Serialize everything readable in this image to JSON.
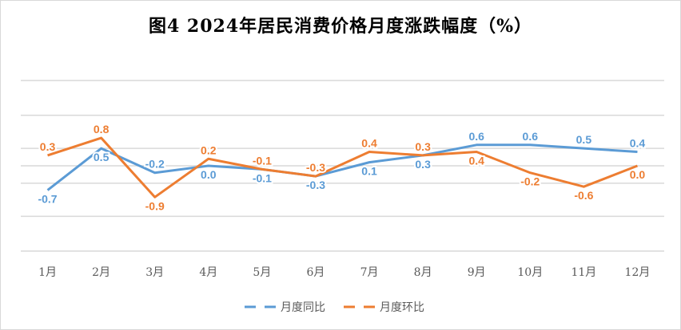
{
  "chart_data": {
    "type": "line",
    "title": "图4  2024年居民消费价格月度涨跌幅度（%）",
    "categories": [
      "1月",
      "2月",
      "3月",
      "4月",
      "5月",
      "6月",
      "7月",
      "8月",
      "9月",
      "10月",
      "11月",
      "12月"
    ],
    "series": [
      {
        "name": "月度同比",
        "color": "#5b9bd5",
        "dashed": true,
        "values": [
          -0.7,
          0.5,
          -0.2,
          0.0,
          -0.1,
          -0.3,
          0.1,
          0.3,
          0.6,
          0.6,
          0.5,
          0.4
        ],
        "labels": [
          "-0.7",
          "0.5",
          "-0.2",
          "0.0",
          "-0.1",
          "-0.3",
          "0.1",
          "0.3",
          "0.6",
          "0.6",
          "0.5",
          "0.4"
        ]
      },
      {
        "name": "月度环比",
        "color": "#ed7d31",
        "dashed": true,
        "values": [
          0.3,
          0.8,
          -0.9,
          0.2,
          -0.1,
          -0.3,
          0.4,
          0.3,
          0.4,
          -0.2,
          -0.6,
          0.0
        ],
        "labels": [
          "0.3",
          "0.8",
          "-0.9",
          "0.2",
          "-0.1",
          "-0.3",
          "0.4",
          "0.3",
          "0.4",
          "-0.2",
          "-0.6",
          "0.0"
        ]
      }
    ],
    "ylim": [
      -2.45,
      2.45
    ],
    "gridlines": [
      2.45,
      1.45,
      0.5,
      0,
      -0.5,
      -1.45,
      -2.45
    ],
    "grid": true,
    "legend": "bottom",
    "xlabel": "",
    "ylabel": ""
  }
}
